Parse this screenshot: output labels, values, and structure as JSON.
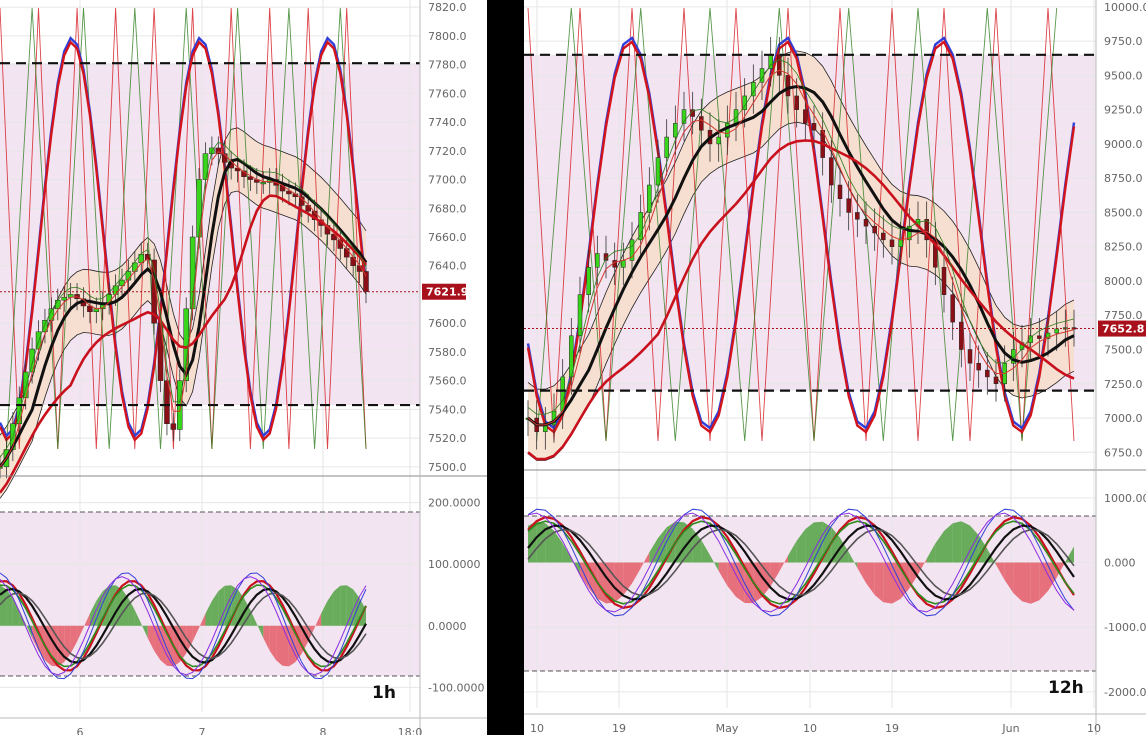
{
  "chart_data": [
    {
      "type": "line",
      "timeframe": "1h",
      "price_label": "7621.9",
      "price_yticks": [
        "7820.0",
        "7800.0",
        "7780.0",
        "7760.0",
        "7740.0",
        "7720.0",
        "7700.0",
        "7680.0",
        "7660.0",
        "7640.0",
        "7620.0",
        "7600.0",
        "7580.0",
        "7560.0",
        "7540.0",
        "7520.0",
        "7500.0"
      ],
      "osc_yticks": [
        "200.0000",
        "100.0000",
        "0.0000",
        "-100.0000"
      ],
      "x_ticks": [
        "6",
        "7",
        "8",
        "18:0"
      ],
      "price_ylim": [
        7495,
        7825
      ],
      "osc_ylim": [
        -140,
        240
      ],
      "levels": {
        "upper_dashed": 7781,
        "lower_dashed": 7543,
        "last_price": 7621.9
      },
      "close_series": [
        7500,
        7512,
        7530,
        7548,
        7566,
        7582,
        7594,
        7602,
        7610,
        7616,
        7618,
        7620,
        7617,
        7612,
        7608,
        7610,
        7614,
        7620,
        7626,
        7630,
        7636,
        7642,
        7648,
        7644,
        7600,
        7560,
        7530,
        7526,
        7560,
        7610,
        7660,
        7700,
        7718,
        7722,
        7718,
        7712,
        7708,
        7706,
        7702,
        7700,
        7698,
        7698,
        7700,
        7696,
        7692,
        7690,
        7688,
        7682,
        7678,
        7672,
        7668,
        7662,
        7658,
        7652,
        7646,
        7640,
        7636,
        7622
      ],
      "colors": {
        "bull": "#39d41c",
        "bear": "#8b0f16",
        "kc_fill": "#f6ddc8",
        "range_fill": "#f3e4f1",
        "price_badge": "#a8111c"
      }
    },
    {
      "type": "line",
      "timeframe": "12h",
      "price_label": "7652.8",
      "price_yticks": [
        "10000.0",
        "9750.0",
        "9500.0",
        "9250.0",
        "9000.0",
        "8750.0",
        "8500.0",
        "8250.0",
        "8000.0",
        "7750.0",
        "7500.0",
        "7250.0",
        "7000.0",
        "6750.0"
      ],
      "osc_yticks": [
        "1000.000",
        "0.000",
        "-1000.000",
        "-2000.000"
      ],
      "x_ticks": [
        "10",
        "19",
        "May",
        "10",
        "19",
        "Jun",
        "10"
      ],
      "price_ylim": [
        6650,
        10050
      ],
      "osc_ylim": [
        -2250,
        1400
      ],
      "levels": {
        "upper_dashed": 9650,
        "lower_dashed": 7200,
        "last_price": 7652.8
      },
      "close_series": [
        7000,
        6900,
        6950,
        7050,
        7300,
        7600,
        7900,
        8100,
        8200,
        8150,
        8100,
        8150,
        8300,
        8500,
        8700,
        8900,
        9050,
        9150,
        9250,
        9200,
        9100,
        9000,
        9050,
        9150,
        9250,
        9350,
        9450,
        9550,
        9650,
        9500,
        9350,
        9250,
        9150,
        9100,
        8900,
        8700,
        8600,
        8500,
        8450,
        8400,
        8350,
        8300,
        8250,
        8300,
        8400,
        8450,
        8300,
        8100,
        7900,
        7700,
        7500,
        7400,
        7350,
        7300,
        7250,
        7400,
        7500,
        7550,
        7600,
        7580,
        7620,
        7650,
        7660,
        7652
      ],
      "colors": {
        "bull": "#39d41c",
        "bear": "#8b0f16",
        "kc_fill": "#f6ddc8",
        "range_fill": "#f3e4f1",
        "price_badge": "#a8111c"
      }
    }
  ]
}
